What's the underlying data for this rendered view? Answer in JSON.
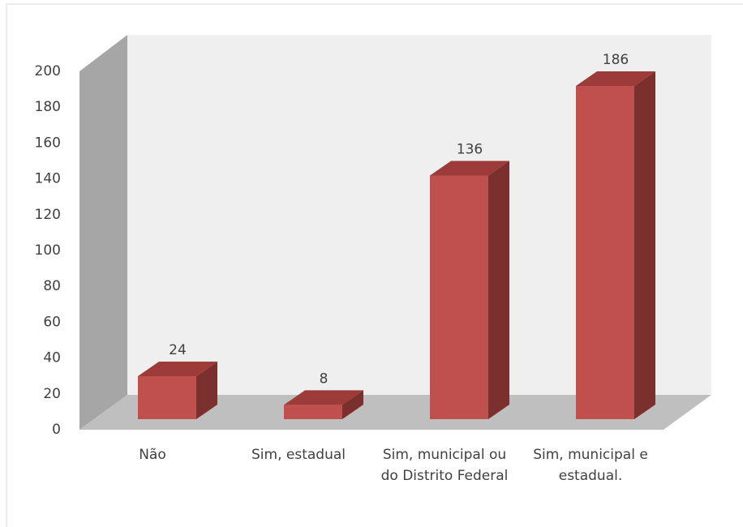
{
  "chart_data": {
    "type": "bar3d",
    "categories": [
      "Não",
      "Sim, estadual",
      "Sim, municipal ou do Distrito Federal",
      "Sim, municipal e estadual."
    ],
    "values": [
      24,
      8,
      136,
      186
    ],
    "color": "#c0504d",
    "ylim": [
      0,
      200
    ],
    "yticks": [
      0,
      20,
      40,
      60,
      80,
      100,
      120,
      140,
      160,
      180,
      200
    ],
    "grid": false
  }
}
